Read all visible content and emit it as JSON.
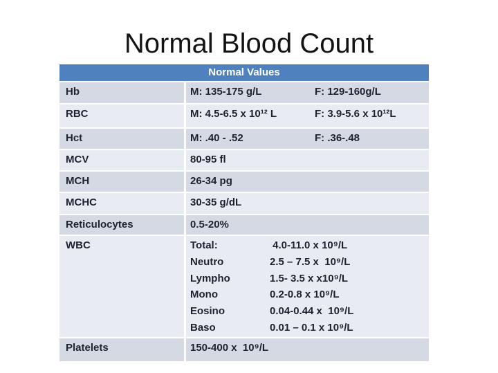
{
  "slide": {
    "title": "Normal Blood Count"
  },
  "table": {
    "header": "Normal Values",
    "colors": {
      "header_bg": "#4e81bd",
      "header_text": "#ffffff",
      "band_dark": "#d4d9e4",
      "band_light": "#e9ebf2",
      "separator": "#ffffff",
      "text": "#1e2130"
    },
    "rows": [
      {
        "label": "Hb",
        "m": "M: 135-175 g/L",
        "f": "F: 129-160g/L"
      },
      {
        "label": "RBC",
        "m": "M: 4.5-6.5 x 10¹² L",
        "f": "F: 3.9-5.6 x 10¹²L"
      },
      {
        "label": "Hct",
        "m": "M: .40 - .52",
        "f": "F: .36-.48"
      },
      {
        "label": "MCV",
        "value": "80-95 fl"
      },
      {
        "label": "MCH",
        "value": "26-34 pg"
      },
      {
        "label": "MCHC",
        "value": "30-35 g/dL"
      },
      {
        "label": "Reticulocytes",
        "value": "0.5-20%"
      },
      {
        "label": "WBC",
        "sub": [
          {
            "name": "Total:",
            "value": " 4.0-11.0 x 10⁹/L"
          },
          {
            "name": "Neutro",
            "value": "2.5 – 7.5 x  10⁹/L"
          },
          {
            "name": "Lympho",
            "value": "1.5- 3.5 x x10⁹/L"
          },
          {
            "name": "Mono",
            "value": "0.2-0.8 x 10⁹/L"
          },
          {
            "name": "Eosino",
            "value": "0.04-0.44 x  10⁹/L"
          },
          {
            "name": "Baso",
            "value": "0.01 – 0.1 x 10⁹/L"
          }
        ]
      },
      {
        "label": "Platelets",
        "value": "150-400 x  10⁹/L"
      }
    ]
  }
}
